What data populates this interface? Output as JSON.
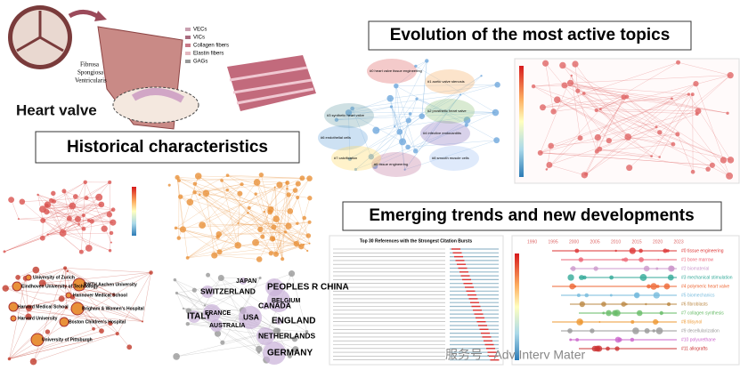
{
  "heart_valve": {
    "title": "Heart valve",
    "legend": [
      "VECs",
      "VICs",
      "Collagen fibers",
      "Elastin fibers",
      "GAGs"
    ],
    "layers": [
      "Fibrosa",
      "Spongiosa",
      "Ventricularis"
    ]
  },
  "sections": {
    "historical": "Historical characteristics",
    "evolution": "Evolution of the most active topics",
    "emerging": "Emerging trends and new developments"
  },
  "institutions": [
    "University of Zurich",
    "Eindhoven University of Technology",
    "RWTH Aachen University",
    "Hannover Medical School",
    "Harvard Medical School",
    "Brigham & Women's Hospital",
    "Harvard University",
    "Boston Children's Hospital",
    "University of Pittsburgh"
  ],
  "countries": [
    "JAPAN",
    "SWITZERLAND",
    "PEOPLES R CHINA",
    "BELGIUM",
    "CANADA",
    "ITALY",
    "FRANCE",
    "USA",
    "ENGLAND",
    "AUSTRALIA",
    "NETHERLANDS",
    "GERMANY"
  ],
  "clusters": [
    "#0 heart valve tissue engineering",
    "#1 aortic valve stenosis",
    "#2 prosthetic heart valve",
    "#3 synthetic heart valve",
    "#4 infective endocarditis",
    "#5 tissue engineering",
    "#6 endothelial cells",
    "#7 calcification",
    "#8 smooth muscle cells"
  ],
  "burst_title": "Top 30 References with the Strongest Citation Bursts",
  "timeline_years": [
    "1990",
    "1995",
    "2000",
    "2005",
    "2010",
    "2015",
    "2020",
    "2023"
  ],
  "timeline_clusters": [
    "#0 tissue engineering",
    "#1 bone marrow",
    "#2 biomaterial",
    "#3 mechanical stimulation",
    "#4 polymeric heart valve",
    "#5 biomechanics",
    "#6 fibroblasts",
    "#7 collagen synthesis",
    "#8 tilisynol",
    "#9 decellularization",
    "#10 polyurethane",
    "#11 allografts"
  ],
  "watermark": "服务号 · Adv Interv Mater"
}
